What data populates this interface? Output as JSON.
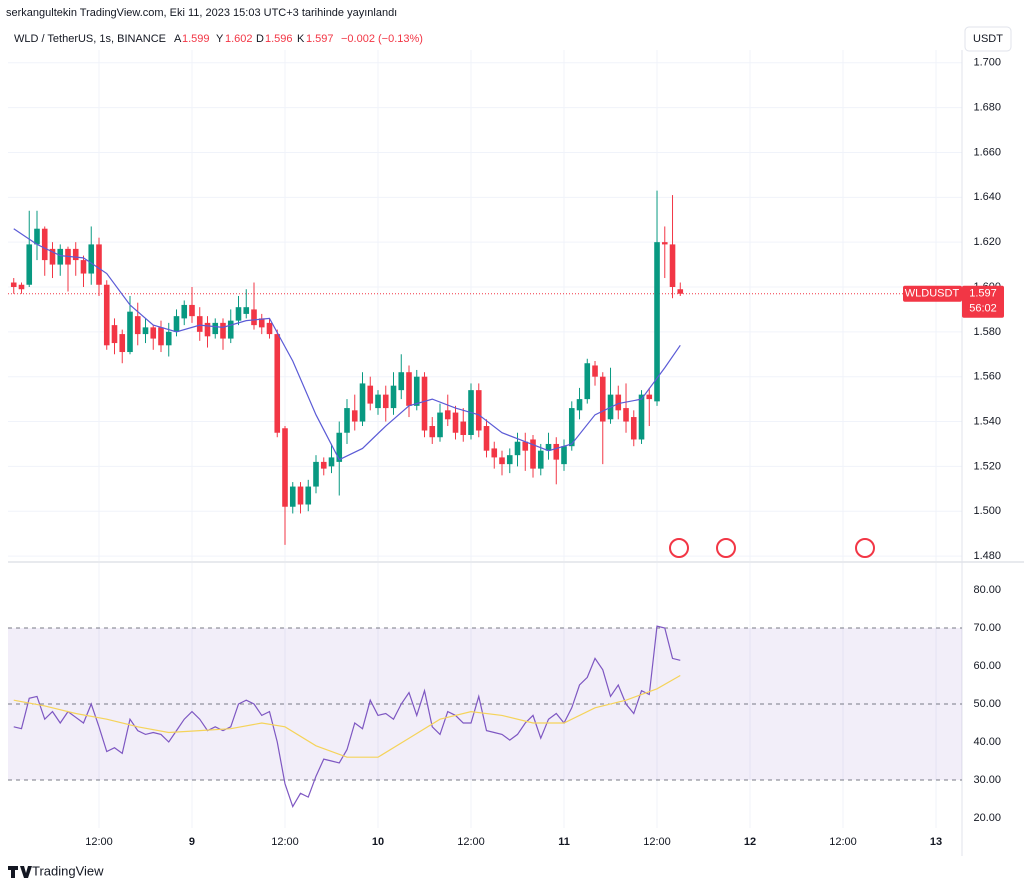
{
  "header": {
    "publisher": "serkangultekin TradingView.com, Eki 11, 2023 15:03 UTC+3 tarihinde yayınlandı"
  },
  "footer": {
    "brand": "TradingView"
  },
  "chart_data": [
    {
      "type": "candlestick",
      "title": "WLD / TetherUS, 1s, BINANCE",
      "symbol": "WLDUSDT",
      "currency": "USDT",
      "legend_labels": [
        "A",
        "Y",
        "D",
        "K"
      ],
      "change": "−0.002 (−0.13%)",
      "countdown": "56:02",
      "up_color": "#089981",
      "down_color": "#f23645",
      "x": [
        1,
        2,
        3,
        4,
        5,
        6,
        7,
        8,
        9,
        10,
        11,
        12,
        13,
        14,
        15,
        16,
        17,
        18,
        19,
        20,
        21,
        22,
        23,
        24,
        25,
        26,
        27,
        28,
        29,
        30,
        31,
        32,
        33,
        34,
        35,
        36,
        37,
        38,
        39,
        40,
        41,
        42,
        43,
        44,
        45,
        46,
        47,
        48,
        49,
        50,
        51,
        52,
        53,
        54,
        55,
        56,
        57,
        58,
        59,
        60,
        61,
        62,
        63,
        64,
        65,
        66,
        67,
        68,
        69,
        70,
        71,
        72,
        73,
        74,
        75,
        76,
        77,
        78,
        79,
        80,
        81,
        82,
        83,
        84,
        85,
        86,
        87
      ],
      "open": [
        1.602,
        1.601,
        1.601,
        1.619,
        1.626,
        1.617,
        1.61,
        1.617,
        1.617,
        1.612,
        1.606,
        1.619,
        1.601,
        1.583,
        1.579,
        1.571,
        1.587,
        1.579,
        1.582,
        1.582,
        1.574,
        1.58,
        1.586,
        1.592,
        1.587,
        1.584,
        1.579,
        1.584,
        1.577,
        1.585,
        1.588,
        1.59,
        1.586,
        1.584,
        1.579,
        1.537,
        1.502,
        1.511,
        1.503,
        1.511,
        1.522,
        1.52,
        1.522,
        1.535,
        1.545,
        1.54,
        1.556,
        1.546,
        1.552,
        1.546,
        1.554,
        1.562,
        1.547,
        1.56,
        1.538,
        1.533,
        1.545,
        1.544,
        1.54,
        1.534,
        1.554,
        1.538,
        1.528,
        1.524,
        1.521,
        1.525,
        1.531,
        1.532,
        1.519,
        1.527,
        1.53,
        1.521,
        1.529,
        1.545,
        1.55,
        1.565,
        1.56,
        1.541,
        1.552,
        1.546,
        1.542,
        1.532,
        1.552,
        1.549,
        1.62,
        1.619,
        1.599
      ],
      "high": [
        1.604,
        1.602,
        1.634,
        1.634,
        1.627,
        1.62,
        1.619,
        1.618,
        1.62,
        1.614,
        1.627,
        1.622,
        1.603,
        1.586,
        1.581,
        1.596,
        1.593,
        1.586,
        1.583,
        1.585,
        1.584,
        1.59,
        1.594,
        1.6,
        1.591,
        1.587,
        1.586,
        1.586,
        1.59,
        1.596,
        1.599,
        1.602,
        1.588,
        1.586,
        1.581,
        1.538,
        1.513,
        1.513,
        1.514,
        1.525,
        1.524,
        1.53,
        1.54,
        1.55,
        1.552,
        1.562,
        1.56,
        1.554,
        1.556,
        1.562,
        1.57,
        1.565,
        1.563,
        1.562,
        1.542,
        1.548,
        1.552,
        1.547,
        1.546,
        1.557,
        1.557,
        1.541,
        1.531,
        1.527,
        1.528,
        1.535,
        1.535,
        1.534,
        1.53,
        1.535,
        1.533,
        1.532,
        1.549,
        1.555,
        1.568,
        1.567,
        1.562,
        1.564,
        1.556,
        1.557,
        1.545,
        1.554,
        1.555,
        1.643,
        1.627,
        1.641,
        1.602
      ],
      "low": [
        1.597,
        1.597,
        1.6,
        1.612,
        1.605,
        1.604,
        1.605,
        1.598,
        1.605,
        1.6,
        1.601,
        1.596,
        1.572,
        1.57,
        1.566,
        1.57,
        1.574,
        1.575,
        1.572,
        1.571,
        1.569,
        1.578,
        1.583,
        1.584,
        1.576,
        1.573,
        1.577,
        1.572,
        1.575,
        1.583,
        1.586,
        1.581,
        1.579,
        1.577,
        1.533,
        1.485,
        1.499,
        1.499,
        1.5,
        1.508,
        1.516,
        1.517,
        1.507,
        1.53,
        1.536,
        1.538,
        1.545,
        1.543,
        1.54,
        1.543,
        1.55,
        1.542,
        1.545,
        1.533,
        1.53,
        1.531,
        1.538,
        1.532,
        1.531,
        1.532,
        1.533,
        1.524,
        1.519,
        1.516,
        1.517,
        1.52,
        1.518,
        1.515,
        1.516,
        1.523,
        1.512,
        1.518,
        1.527,
        1.541,
        1.548,
        1.556,
        1.521,
        1.539,
        1.541,
        1.535,
        1.529,
        1.53,
        1.538,
        1.547,
        1.604,
        1.595,
        1.596
      ],
      "close": [
        1.6,
        1.599,
        1.619,
        1.626,
        1.612,
        1.61,
        1.617,
        1.61,
        1.612,
        1.606,
        1.619,
        1.601,
        1.574,
        1.575,
        1.571,
        1.589,
        1.579,
        1.582,
        1.577,
        1.574,
        1.58,
        1.587,
        1.592,
        1.587,
        1.58,
        1.578,
        1.584,
        1.577,
        1.585,
        1.591,
        1.591,
        1.583,
        1.582,
        1.579,
        1.535,
        1.502,
        1.511,
        1.503,
        1.511,
        1.522,
        1.519,
        1.524,
        1.535,
        1.546,
        1.54,
        1.557,
        1.548,
        1.552,
        1.546,
        1.556,
        1.562,
        1.547,
        1.56,
        1.536,
        1.533,
        1.544,
        1.541,
        1.535,
        1.534,
        1.554,
        1.536,
        1.527,
        1.524,
        1.521,
        1.525,
        1.531,
        1.527,
        1.519,
        1.527,
        1.53,
        1.523,
        1.529,
        1.546,
        1.55,
        1.566,
        1.56,
        1.54,
        1.552,
        1.545,
        1.54,
        1.532,
        1.552,
        1.55,
        1.62,
        1.619,
        1.6,
        1.597
      ],
      "ma": {
        "color": "#5b5bd6",
        "x": [
          1,
          4,
          7,
          10,
          13,
          16,
          19,
          22,
          25,
          28,
          31,
          34,
          37,
          40,
          43,
          46,
          49,
          52,
          55,
          58,
          61,
          64,
          67,
          70,
          73,
          76,
          79,
          82,
          85,
          87
        ],
        "values": [
          1.626,
          1.619,
          1.614,
          1.613,
          1.606,
          1.592,
          1.583,
          1.58,
          1.583,
          1.582,
          1.585,
          1.586,
          1.567,
          1.543,
          1.523,
          1.528,
          1.538,
          1.547,
          1.55,
          1.546,
          1.543,
          1.535,
          1.531,
          1.527,
          1.53,
          1.543,
          1.548,
          1.55,
          1.564,
          1.574
        ]
      },
      "xlim": [
        0.26,
        123.35
      ],
      "ylim": [
        1.4778,
        1.7057
      ],
      "yticks": [
        {
          "value": 1.48,
          "label": "1.480"
        },
        {
          "value": 1.5,
          "label": "1.500"
        },
        {
          "value": 1.52,
          "label": "1.520"
        },
        {
          "value": 1.54,
          "label": "1.540"
        },
        {
          "value": 1.56,
          "label": "1.560"
        },
        {
          "value": 1.58,
          "label": "1.580"
        },
        {
          "value": 1.6,
          "label": "1.600"
        },
        {
          "value": 1.62,
          "label": "1.620"
        },
        {
          "value": 1.64,
          "label": "1.640"
        },
        {
          "value": 1.66,
          "label": "1.660"
        },
        {
          "value": 1.68,
          "label": "1.680"
        },
        {
          "value": 1.7,
          "label": "1.700"
        }
      ],
      "grid": true
    },
    {
      "type": "line",
      "series": [
        {
          "color": "#7e57c2",
          "x": [
            1,
            2,
            3,
            4,
            5,
            6,
            7,
            8,
            9,
            10,
            11,
            12,
            13,
            14,
            15,
            16,
            17,
            18,
            19,
            20,
            21,
            22,
            23,
            24,
            25,
            26,
            27,
            28,
            29,
            30,
            31,
            32,
            33,
            34,
            35,
            36,
            37,
            38,
            39,
            40,
            41,
            42,
            43,
            44,
            45,
            46,
            47,
            48,
            49,
            50,
            51,
            52,
            53,
            54,
            55,
            56,
            57,
            58,
            59,
            60,
            61,
            62,
            63,
            64,
            65,
            66,
            67,
            68,
            69,
            70,
            71,
            72,
            73,
            74,
            75,
            76,
            77,
            78,
            79,
            80,
            81,
            82,
            83,
            84,
            85,
            86,
            87
          ],
          "values": [
            44,
            43.5,
            51.5,
            52,
            46,
            48,
            45,
            48,
            46.5,
            45,
            50,
            44,
            37.5,
            38.5,
            37,
            46,
            43,
            42,
            42.5,
            42,
            40,
            43,
            46,
            48,
            46,
            43,
            44,
            43,
            44,
            50,
            51,
            50,
            47,
            48,
            40,
            29,
            23,
            26.5,
            25.5,
            31,
            35.5,
            35,
            34.5,
            38,
            45,
            43.5,
            51,
            47,
            47.5,
            46,
            50,
            53,
            47,
            53.5,
            44,
            42,
            48,
            47,
            45,
            45,
            52,
            43,
            42.5,
            42,
            40.5,
            42,
            45,
            47,
            41,
            46,
            47.5,
            45,
            49,
            55,
            57,
            62,
            59,
            52,
            55,
            50,
            47.5,
            53.5,
            52.5,
            70.5,
            70,
            62,
            61.5
          ]
        },
        {
          "color": "#f5d35a",
          "x": [
            1,
            5,
            9,
            13,
            17,
            21,
            25,
            29,
            33,
            36,
            40,
            44,
            48,
            52,
            56,
            60,
            64,
            68,
            72,
            76,
            80,
            84,
            87
          ],
          "values": [
            51,
            49.5,
            47.5,
            46,
            44,
            42.5,
            43,
            43.5,
            45,
            44,
            39,
            36,
            36,
            41,
            46,
            48,
            47,
            45,
            45,
            49,
            51,
            54,
            57.5
          ]
        }
      ],
      "band": [
        30,
        70
      ],
      "levels": [
        30,
        50,
        70
      ],
      "xlim": [
        0.26,
        123.35
      ],
      "ylim": [
        17.37,
        87.37
      ],
      "yticks": [
        {
          "value": 20,
          "label": "20.00"
        },
        {
          "value": 30,
          "label": "30.00"
        },
        {
          "value": 40,
          "label": "40.00"
        },
        {
          "value": 50,
          "label": "50.00"
        },
        {
          "value": 60,
          "label": "60.00"
        },
        {
          "value": 70,
          "label": "70.00"
        },
        {
          "value": 80,
          "label": "80.00"
        }
      ],
      "xticks": [
        {
          "value": 12,
          "label": "12:00"
        },
        {
          "value": 24,
          "label": "9"
        },
        {
          "value": 36,
          "label": "12:00"
        },
        {
          "value": 48,
          "label": "10"
        },
        {
          "value": 60,
          "label": "12:00"
        },
        {
          "value": 72,
          "label": "11"
        },
        {
          "value": 84,
          "label": "12:00"
        },
        {
          "value": 96,
          "label": "12"
        },
        {
          "value": 108,
          "label": "12:00"
        },
        {
          "value": 120,
          "label": "13"
        }
      ],
      "grid": true
    }
  ]
}
